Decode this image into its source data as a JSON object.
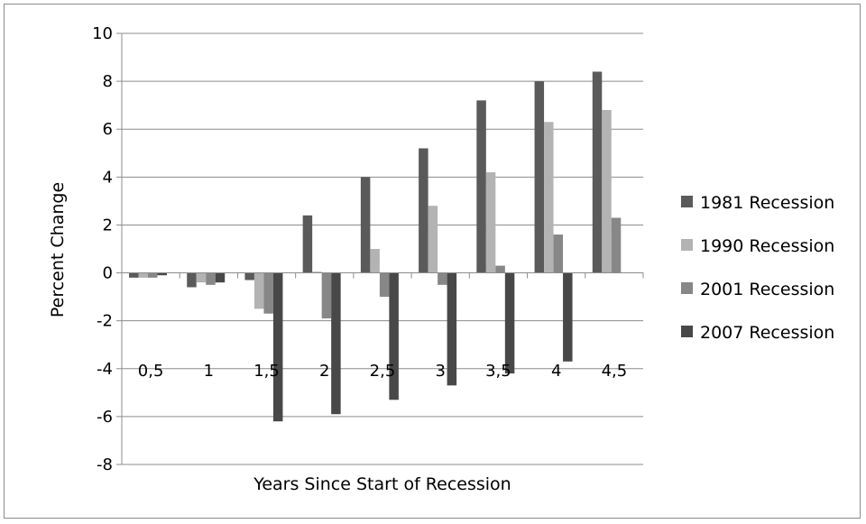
{
  "chart_data": {
    "type": "bar",
    "categories": [
      "0,5",
      "1",
      "1,5",
      "2",
      "2,5",
      "3",
      "3,5",
      "4",
      "4,5"
    ],
    "series": [
      {
        "name": "1981 Recession",
        "color": "#5a5a5a",
        "values": [
          -0.2,
          -0.6,
          -0.3,
          2.4,
          4.0,
          5.2,
          7.2,
          8.0,
          8.4
        ]
      },
      {
        "name": "1990 Recession",
        "color": "#b3b3b3",
        "values": [
          -0.2,
          -0.4,
          -1.5,
          0.05,
          1.0,
          2.8,
          4.2,
          6.3,
          6.8
        ]
      },
      {
        "name": "2001 Recession",
        "color": "#878787",
        "values": [
          -0.2,
          -0.5,
          -1.7,
          -1.9,
          -1.0,
          -0.5,
          0.3,
          1.6,
          2.3
        ]
      },
      {
        "name": "2007 Recession",
        "color": "#484848",
        "values": [
          -0.1,
          -0.4,
          -6.2,
          -5.9,
          -5.3,
          -4.7,
          -4.2,
          -3.7,
          null
        ]
      }
    ],
    "xlabel": "Years Since Start of Recession",
    "ylabel": "Percent Change",
    "ylim": [
      -8,
      10
    ],
    "yticks": [
      "10",
      "8",
      "6",
      "4",
      "2",
      "0",
      "-2",
      "-4",
      "-6",
      "-8"
    ],
    "grid": true,
    "legend": "right"
  }
}
